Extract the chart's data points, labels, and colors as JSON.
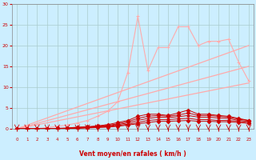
{
  "x": [
    0,
    1,
    2,
    3,
    4,
    5,
    6,
    7,
    8,
    9,
    10,
    11,
    12,
    13,
    14,
    15,
    16,
    17,
    18,
    19,
    20,
    21,
    22,
    23
  ],
  "line_upper": [
    0,
    0,
    0,
    0.3,
    0.6,
    0.9,
    1.4,
    2.0,
    3.0,
    4.2,
    6.5,
    13.5,
    27.0,
    14.0,
    19.5,
    19.5,
    24.5,
    24.5,
    20.0,
    21.0,
    21.0,
    21.5,
    16.0,
    11.5
  ],
  "line_lin_high": [
    0,
    0.87,
    1.74,
    2.61,
    3.48,
    4.35,
    5.22,
    6.09,
    6.96,
    7.83,
    8.7,
    9.57,
    10.43,
    11.3,
    12.17,
    13.04,
    13.91,
    14.78,
    15.65,
    16.52,
    17.39,
    18.26,
    19.13,
    20.0
  ],
  "line_lin_mid": [
    0,
    0.65,
    1.3,
    1.96,
    2.61,
    3.26,
    3.91,
    4.57,
    5.22,
    5.87,
    6.52,
    7.17,
    7.83,
    8.48,
    9.13,
    9.78,
    10.43,
    11.09,
    11.74,
    12.39,
    13.04,
    13.7,
    14.35,
    15.0
  ],
  "line_lin_low": [
    0,
    0.48,
    0.96,
    1.43,
    1.91,
    2.39,
    2.87,
    3.35,
    3.83,
    4.3,
    4.78,
    5.26,
    5.74,
    6.22,
    6.7,
    7.17,
    7.65,
    8.13,
    8.61,
    9.09,
    9.57,
    10.04,
    10.52,
    11.0
  ],
  "line_dark1": [
    0,
    0,
    0,
    0,
    0.1,
    0.2,
    0.4,
    0.5,
    0.7,
    1.0,
    1.5,
    2.0,
    3.0,
    3.5,
    3.5,
    3.2,
    3.8,
    4.5,
    3.5,
    3.5,
    3.2,
    3.0,
    2.5,
    2.0
  ],
  "line_dark2": [
    0,
    0,
    0,
    0,
    0.1,
    0.1,
    0.3,
    0.4,
    0.6,
    0.8,
    1.2,
    1.7,
    2.5,
    3.0,
    3.2,
    3.0,
    3.3,
    3.8,
    3.2,
    3.2,
    3.0,
    2.8,
    2.3,
    2.0
  ],
  "line_dark3": [
    0,
    0,
    0,
    0,
    0.1,
    0.1,
    0.2,
    0.3,
    0.5,
    0.7,
    1.0,
    1.4,
    2.0,
    2.5,
    2.8,
    2.7,
    2.9,
    3.2,
    2.8,
    2.8,
    2.6,
    2.5,
    2.0,
    1.8
  ],
  "line_dark4": [
    0,
    0,
    0,
    0,
    0.0,
    0.1,
    0.2,
    0.3,
    0.4,
    0.5,
    0.8,
    1.1,
    1.5,
    2.0,
    2.2,
    2.2,
    2.4,
    2.5,
    2.2,
    2.2,
    2.0,
    2.0,
    1.8,
    1.5
  ],
  "line_dark5": [
    0,
    0,
    0,
    0,
    0.0,
    0.0,
    0.1,
    0.2,
    0.3,
    0.4,
    0.6,
    0.9,
    1.2,
    1.5,
    1.8,
    1.8,
    1.9,
    2.0,
    1.8,
    1.8,
    1.7,
    1.7,
    1.5,
    1.3
  ],
  "bg_color": "#cceeff",
  "grid_color": "#aacccc",
  "line_color_light": "#ffaaaa",
  "line_color_dark": "#cc0000",
  "arrow_color": "#cc0000",
  "xlabel": "Vent moyen/en rafales ( km/h )",
  "ylim": [
    0,
    30
  ],
  "xlim": [
    -0.5,
    23.5
  ],
  "yticks": [
    0,
    5,
    10,
    15,
    20,
    25,
    30
  ],
  "xticks": [
    0,
    1,
    2,
    3,
    4,
    5,
    6,
    7,
    8,
    9,
    10,
    11,
    12,
    13,
    14,
    15,
    16,
    17,
    18,
    19,
    20,
    21,
    22,
    23
  ]
}
